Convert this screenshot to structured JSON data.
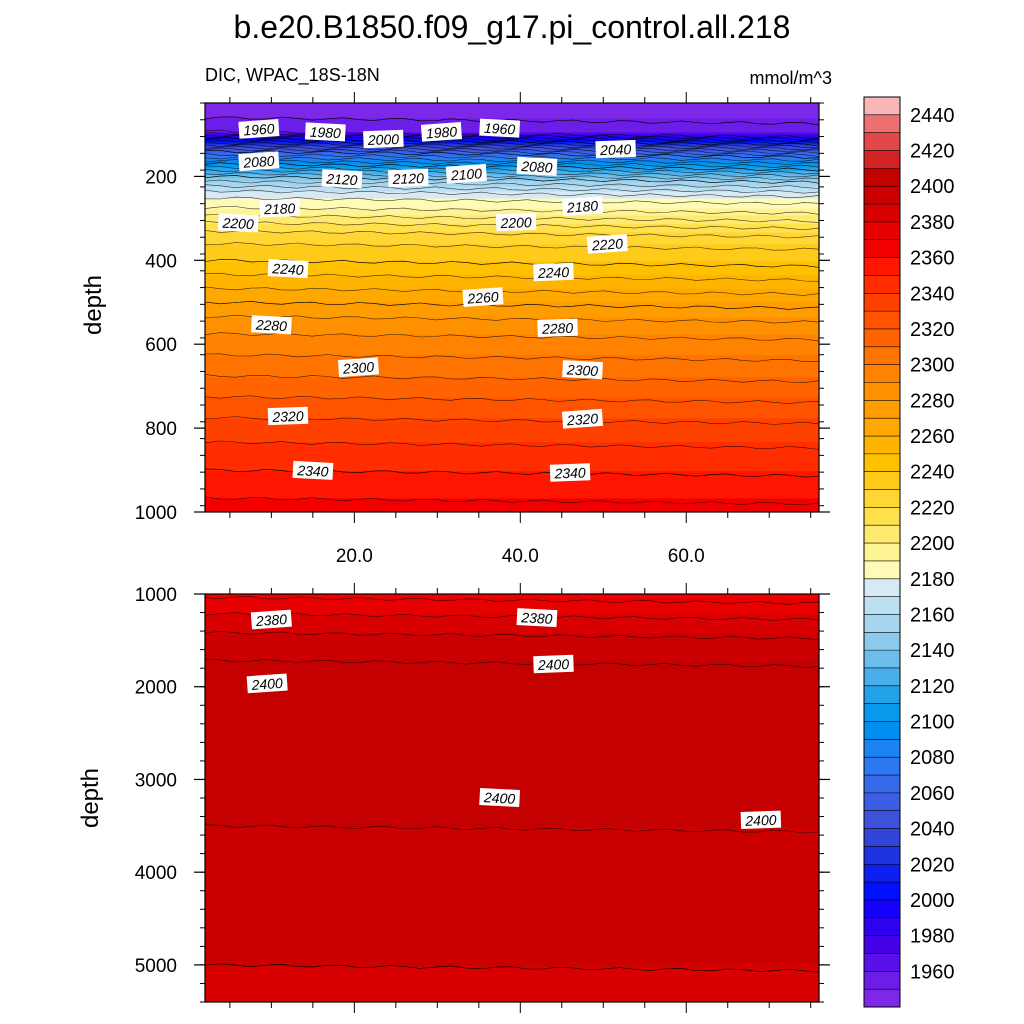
{
  "figure": {
    "title": "b.e20.B1850.f09_g17.pi_control.all.218",
    "left_subtitle": "DIC, WPAC_18S-18N",
    "right_subtitle": "mmol/m^3"
  },
  "chart_data": [
    {
      "type": "contour",
      "name": "upper-panel",
      "ylabel": "depth",
      "xlabel": "",
      "xlim": [
        2,
        76
      ],
      "ylim": [
        25,
        1000
      ],
      "y_reversed": true,
      "xticks": [
        20,
        40,
        60
      ],
      "xtick_labels": [
        "20.0",
        "40.0",
        "60.0"
      ],
      "yticks": [
        200,
        400,
        600,
        800,
        1000
      ],
      "ytick_labels": [
        "200",
        "400",
        "600",
        "800",
        "1000"
      ],
      "depth_value_profile": [
        [
          25,
          1945
        ],
        [
          60,
          1950
        ],
        [
          90,
          1955
        ],
        [
          110,
          2000
        ],
        [
          140,
          2060
        ],
        [
          170,
          2100
        ],
        [
          200,
          2140
        ],
        [
          240,
          2175
        ],
        [
          285,
          2195
        ],
        [
          300,
          2205
        ],
        [
          340,
          2225
        ],
        [
          400,
          2240
        ],
        [
          450,
          2255
        ],
        [
          500,
          2270
        ],
        [
          550,
          2285
        ],
        [
          600,
          2295
        ],
        [
          650,
          2305
        ],
        [
          700,
          2315
        ],
        [
          800,
          2335
        ],
        [
          900,
          2350
        ],
        [
          1000,
          2365
        ]
      ],
      "contour_labels": [
        {
          "text": "1960",
          "x": 8.5,
          "y": 88
        },
        {
          "text": "1980",
          "x": 16.5,
          "y": 95
        },
        {
          "text": "2000",
          "x": 23.5,
          "y": 112
        },
        {
          "text": "1980",
          "x": 30.5,
          "y": 95
        },
        {
          "text": "1960",
          "x": 37.5,
          "y": 86
        },
        {
          "text": "2040",
          "x": 51.5,
          "y": 136
        },
        {
          "text": "2080",
          "x": 8.5,
          "y": 165
        },
        {
          "text": "2120",
          "x": 18.5,
          "y": 207
        },
        {
          "text": "2120",
          "x": 26.5,
          "y": 205
        },
        {
          "text": "2100",
          "x": 33.5,
          "y": 195
        },
        {
          "text": "2080",
          "x": 42.0,
          "y": 177
        },
        {
          "text": "2180",
          "x": 11.0,
          "y": 277
        },
        {
          "text": "2180",
          "x": 47.5,
          "y": 272
        },
        {
          "text": "2200",
          "x": 6.0,
          "y": 312
        },
        {
          "text": "2200",
          "x": 39.5,
          "y": 310
        },
        {
          "text": "2220",
          "x": 50.5,
          "y": 362
        },
        {
          "text": "2240",
          "x": 12.0,
          "y": 421
        },
        {
          "text": "2240",
          "x": 44.0,
          "y": 429
        },
        {
          "text": "2260",
          "x": 35.5,
          "y": 489
        },
        {
          "text": "2280",
          "x": 10.0,
          "y": 555
        },
        {
          "text": "2280",
          "x": 44.5,
          "y": 562
        },
        {
          "text": "2300",
          "x": 20.5,
          "y": 656
        },
        {
          "text": "2300",
          "x": 47.5,
          "y": 662
        },
        {
          "text": "2320",
          "x": 12.0,
          "y": 772
        },
        {
          "text": "2320",
          "x": 47.5,
          "y": 779
        },
        {
          "text": "2340",
          "x": 15.0,
          "y": 902
        },
        {
          "text": "2340",
          "x": 46.0,
          "y": 907
        }
      ]
    },
    {
      "type": "contour",
      "name": "lower-panel",
      "ylabel": "depth",
      "xlabel": "",
      "xlim": [
        2,
        76
      ],
      "ylim": [
        1000,
        5400
      ],
      "y_reversed": true,
      "xticks": [
        20,
        40,
        60
      ],
      "xtick_labels": [
        "",
        "",
        ""
      ],
      "yticks": [
        1000,
        2000,
        3000,
        4000,
        5000
      ],
      "ytick_labels": [
        "1000",
        "2000",
        "3000",
        "4000",
        "5000"
      ],
      "depth_value_profile": [
        [
          1000,
          2368
        ],
        [
          1300,
          2385
        ],
        [
          1600,
          2398
        ],
        [
          2000,
          2405
        ],
        [
          3000,
          2404
        ],
        [
          4000,
          2396
        ],
        [
          5000,
          2390
        ],
        [
          5400,
          2388
        ]
      ],
      "contour_labels": [
        {
          "text": "2380",
          "x": 10.0,
          "y": 1280
        },
        {
          "text": "2380",
          "x": 42.0,
          "y": 1260
        },
        {
          "text": "2400",
          "x": 44.0,
          "y": 1760
        },
        {
          "text": "2400",
          "x": 9.5,
          "y": 1970
        },
        {
          "text": "2400",
          "x": 37.5,
          "y": 3200
        },
        {
          "text": "2400",
          "x": 69.0,
          "y": 3440
        }
      ]
    }
  ],
  "colorbar": {
    "ticks": [
      "2440",
      "2420",
      "2400",
      "2380",
      "2360",
      "2340",
      "2320",
      "2300",
      "2280",
      "2260",
      "2240",
      "2220",
      "2200",
      "2180",
      "2160",
      "2140",
      "2120",
      "2100",
      "2080",
      "2060",
      "2040",
      "2020",
      "2000",
      "1980",
      "1960"
    ],
    "levels": [
      2450,
      2440,
      2430,
      2420,
      2410,
      2400,
      2390,
      2380,
      2370,
      2360,
      2350,
      2340,
      2330,
      2320,
      2310,
      2300,
      2290,
      2280,
      2270,
      2260,
      2250,
      2240,
      2230,
      2220,
      2210,
      2200,
      2190,
      2180,
      2170,
      2160,
      2150,
      2140,
      2130,
      2120,
      2110,
      2100,
      2090,
      2080,
      2070,
      2060,
      2050,
      2040,
      2030,
      2020,
      2010,
      2000,
      1990,
      1980,
      1970,
      1960,
      1950,
      1940
    ],
    "colors": [
      "#f9b6b6",
      "#ef7070",
      "#e24848",
      "#d22424",
      "#c40000",
      "#cc0000",
      "#d80000",
      "#e60000",
      "#f20000",
      "#ff1500",
      "#ff2d00",
      "#ff4100",
      "#ff5300",
      "#ff6400",
      "#ff7400",
      "#ff8200",
      "#ff9000",
      "#ff9c00",
      "#ffa800",
      "#ffb400",
      "#ffc000",
      "#ffcb1a",
      "#ffd633",
      "#ffe04d",
      "#ffea70",
      "#fff494",
      "#fffab5",
      "#d6eaf5",
      "#bcdff2",
      "#a6d6ef",
      "#8ccaec",
      "#6dbdea",
      "#4aaeea",
      "#23a2ea",
      "#0899ec",
      "#008ef0",
      "#1b84f2",
      "#2c78f0",
      "#356beb",
      "#3b5ee4",
      "#3d51dc",
      "#3344d8",
      "#1f33e0",
      "#0d20f0",
      "#0010ff",
      "#1500ff",
      "#3000f0",
      "#4600e8",
      "#5a10e8",
      "#6c1ee8",
      "#7d28e8"
    ]
  }
}
